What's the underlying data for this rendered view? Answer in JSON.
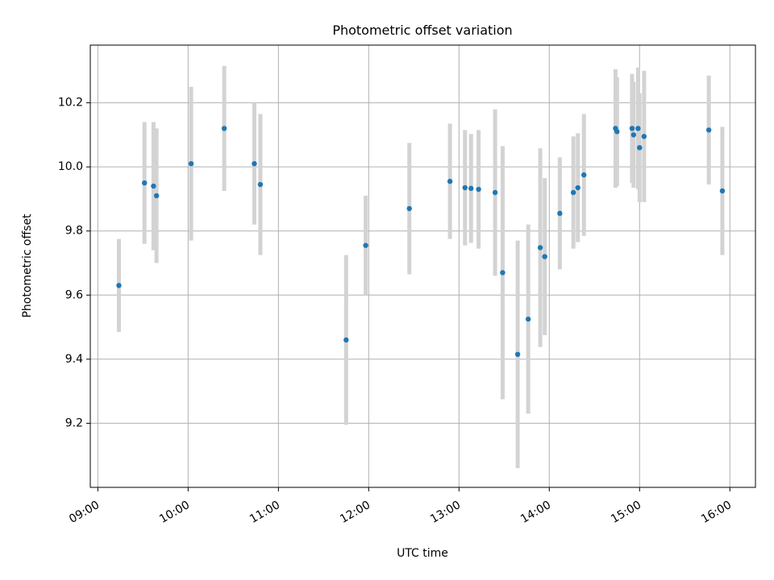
{
  "chart_data": {
    "type": "scatter",
    "title": "Photometric offset variation",
    "xlabel": "UTC time",
    "ylabel": "Photometric offset",
    "x_unit": "time-of-day",
    "xlim": [
      "08:55",
      "16:17"
    ],
    "ylim": [
      9.0,
      10.38
    ],
    "x_ticks": [
      "09:00",
      "10:00",
      "11:00",
      "12:00",
      "13:00",
      "14:00",
      "15:00",
      "16:00"
    ],
    "y_ticks": [
      9.2,
      9.4,
      9.6,
      9.8,
      10.0,
      10.2
    ],
    "y_tick_labels": [
      "9.2",
      "9.4",
      "9.6",
      "9.8",
      "10.0",
      "10.2"
    ],
    "grid": true,
    "marker_color": "#1f77b4",
    "errorbar_color": "#d3d3d3",
    "series": [
      {
        "points": [
          {
            "x": "09:14",
            "y": 9.63,
            "err": 0.145
          },
          {
            "x": "09:31",
            "y": 9.95,
            "err": 0.19
          },
          {
            "x": "09:37",
            "y": 9.94,
            "err": 0.2
          },
          {
            "x": "09:39",
            "y": 9.91,
            "err": 0.21
          },
          {
            "x": "10:02",
            "y": 10.01,
            "err": 0.24
          },
          {
            "x": "10:24",
            "y": 10.12,
            "err": 0.195
          },
          {
            "x": "10:44",
            "y": 10.01,
            "err": 0.19
          },
          {
            "x": "10:48",
            "y": 9.945,
            "err": 0.22
          },
          {
            "x": "11:45",
            "y": 9.46,
            "err": 0.265
          },
          {
            "x": "11:58",
            "y": 9.755,
            "err": 0.155
          },
          {
            "x": "12:27",
            "y": 9.87,
            "err": 0.205
          },
          {
            "x": "12:54",
            "y": 9.955,
            "err": 0.18
          },
          {
            "x": "13:04",
            "y": 9.935,
            "err": 0.18
          },
          {
            "x": "13:08",
            "y": 9.933,
            "err": 0.17
          },
          {
            "x": "13:13",
            "y": 9.93,
            "err": 0.185
          },
          {
            "x": "13:24",
            "y": 9.92,
            "err": 0.26
          },
          {
            "x": "13:29",
            "y": 9.67,
            "err": 0.395
          },
          {
            "x": "13:39",
            "y": 9.415,
            "err": 0.355
          },
          {
            "x": "13:46",
            "y": 9.525,
            "err": 0.295
          },
          {
            "x": "13:54",
            "y": 9.748,
            "err": 0.31
          },
          {
            "x": "13:57",
            "y": 9.72,
            "err": 0.245
          },
          {
            "x": "14:07",
            "y": 9.855,
            "err": 0.175
          },
          {
            "x": "14:16",
            "y": 9.92,
            "err": 0.175
          },
          {
            "x": "14:19",
            "y": 9.935,
            "err": 0.17
          },
          {
            "x": "14:23",
            "y": 9.975,
            "err": 0.19
          },
          {
            "x": "14:44",
            "y": 10.12,
            "err": 0.185
          },
          {
            "x": "14:45",
            "y": 10.11,
            "err": 0.17
          },
          {
            "x": "14:55",
            "y": 10.12,
            "err": 0.17
          },
          {
            "x": "14:56",
            "y": 10.1,
            "err": 0.165
          },
          {
            "x": "14:59",
            "y": 10.12,
            "err": 0.19
          },
          {
            "x": "15:00",
            "y": 10.06,
            "err": 0.17
          },
          {
            "x": "15:03",
            "y": 10.095,
            "err": 0.205
          },
          {
            "x": "15:46",
            "y": 10.115,
            "err": 0.17
          },
          {
            "x": "15:55",
            "y": 9.925,
            "err": 0.2
          }
        ]
      }
    ]
  }
}
